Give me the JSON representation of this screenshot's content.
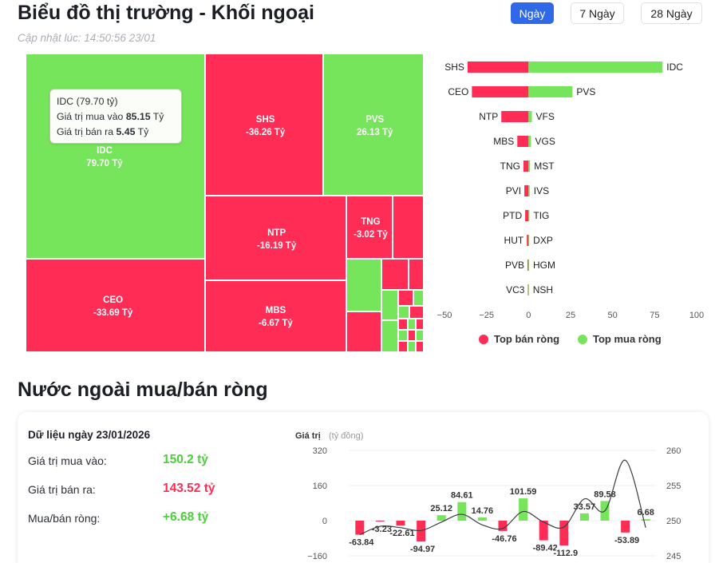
{
  "header": {
    "title": "Biểu đồ thị trường - Khối ngoại",
    "updated": "Cập nhật lúc: 14:50:56 23/01",
    "periods": [
      "Ngày",
      "7 Ngày",
      "28 Ngày"
    ],
    "active_period": "Ngày"
  },
  "colors": {
    "buy": "#77e55c",
    "sell": "#ff2d55",
    "active_button": "#2f69e8"
  },
  "treemap": {
    "cells": [
      {
        "ticker": "IDC",
        "value_label": "79.70 Tỷ",
        "side": "buy",
        "net": 79.7
      },
      {
        "ticker": "SHS",
        "value_label": "-36.26 Tỷ",
        "side": "sell",
        "net": -36.26
      },
      {
        "ticker": "PVS",
        "value_label": "26.13 Tỷ",
        "side": "buy",
        "net": 26.13
      },
      {
        "ticker": "NTP",
        "value_label": "-16.19 Tỷ",
        "side": "sell",
        "net": -16.19
      },
      {
        "ticker": "TNG",
        "value_label": "-3.02 Tỷ",
        "side": "sell",
        "net": -3.02
      },
      {
        "ticker": "CEO",
        "value_label": "-33.69 Tỷ",
        "side": "sell",
        "net": -33.69
      },
      {
        "ticker": "MBS",
        "value_label": "-6.67 Tỷ",
        "side": "sell",
        "net": -6.67
      }
    ],
    "tooltip": {
      "title": "IDC (79.70 tỷ)",
      "buy_label": "Giá trị mua vào",
      "buy_value": "85.15",
      "sell_label": "Giá trị bán ra",
      "sell_value": "5.45",
      "unit": "Tỷ"
    }
  },
  "top_chart": {
    "sell_tickers": [
      "SHS",
      "CEO",
      "NTP",
      "MBS",
      "TNG",
      "PVI",
      "PTD",
      "HUT",
      "PVB",
      "VC3"
    ],
    "sell_values": [
      -36.26,
      -33.69,
      -16.19,
      -6.67,
      -3.02,
      -2.5,
      -2.0,
      -1.0,
      -0.6,
      -0.4
    ],
    "buy_tickers": [
      "IDC",
      "PVS",
      "VFS",
      "VGS",
      "MST",
      "IVS",
      "TIG",
      "DXP",
      "HGM",
      "NSH"
    ],
    "buy_values": [
      79.7,
      26.13,
      2.0,
      1.5,
      0.9,
      0.7,
      0.5,
      0.4,
      0.3,
      0.2
    ],
    "x_ticks": [
      "−50",
      "−25",
      "0",
      "25",
      "50",
      "75",
      "100"
    ],
    "xlim": [
      -50,
      100
    ],
    "legend": {
      "sell": "Top bán ròng",
      "buy": "Top mua ròng"
    }
  },
  "net_section": {
    "title": "Nước ngoài mua/bán ròng",
    "date_label": "Dữ liệu ngày 23/01/2026",
    "buy_label": "Giá trị mua vào:",
    "buy_value": "150.2 tỷ",
    "sell_label": "Giá trị bán ra:",
    "sell_value": "143.52 tỷ",
    "net_label": "Mua/bán ròng:",
    "net_value": "+6.68 tỷ"
  },
  "chart_data": {
    "type": "bar",
    "title": "Giá trị",
    "unit_label": "(tỷ đồng)",
    "y_left_ticks": [
      "320",
      "160",
      "0",
      "−160"
    ],
    "y_right_ticks": [
      "260",
      "255",
      "250",
      "245"
    ],
    "ylim": [
      -160,
      320
    ],
    "y2lim": [
      245,
      260
    ],
    "series": [
      {
        "name": "net",
        "values": [
          -63.84,
          -3.23,
          -22.61,
          -94.97,
          25.12,
          84.61,
          14.76,
          -46.76,
          101.59,
          -89.42,
          -112.9,
          33.57,
          89.58,
          -53.89,
          6.68
        ]
      },
      {
        "name": "index",
        "values": [
          248.0,
          249.2,
          249.0,
          248.6,
          249.8,
          250.9,
          249.4,
          248.9,
          251.3,
          249.8,
          249.1,
          253.1,
          251.4,
          258.6,
          249.0
        ]
      }
    ],
    "labels": [
      "-63.84",
      "-3.23",
      "-22.61",
      "-94.97",
      "25.12",
      "84.61",
      "14.76",
      "-46.76",
      "101.59",
      "-89.42",
      "-112.9",
      "33.57",
      "89.58",
      "-53.89",
      "6.68"
    ]
  }
}
